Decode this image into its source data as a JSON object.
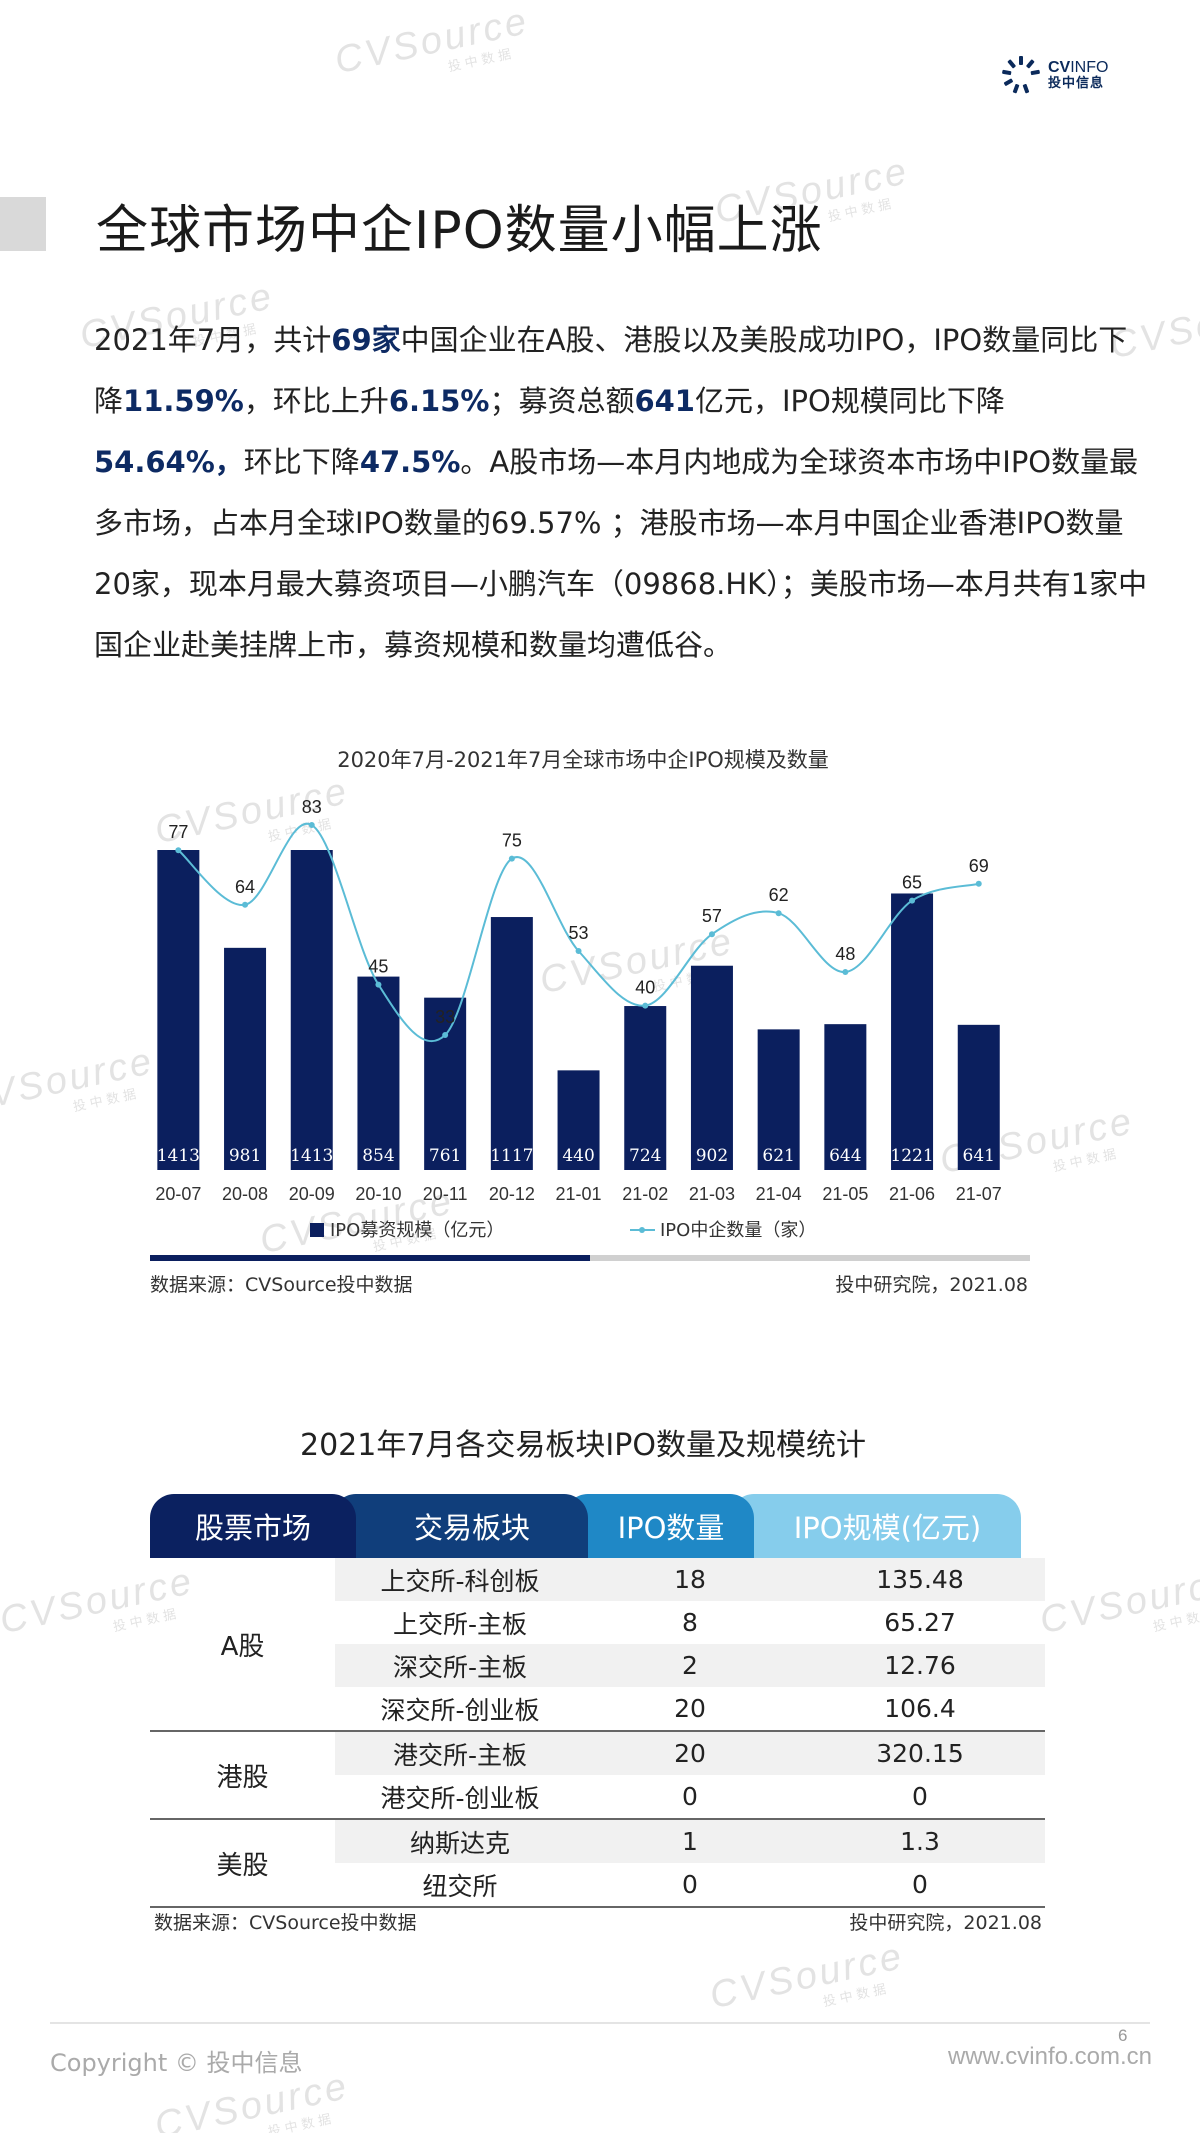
{
  "watermark": {
    "text": "CVSource",
    "sub": "投中数据"
  },
  "logo": {
    "text_en_bold": "CV",
    "text_en": "INFO",
    "text_cn": "投中信息"
  },
  "title": "全球市场中企IPO数量小幅上涨",
  "intro": {
    "p1": "2021年7月，共计",
    "b1": "69家",
    "p2": "中国企业在A股、港股以及美股成功IPO，IPO数量同比下降",
    "b2": "11.59%",
    "p3": "，环比上升",
    "b3": "6.15%",
    "p4": "；募资总额",
    "b4": "641",
    "p5": "亿元，IPO规模同比下降",
    "b5": "54.64%，",
    "p6": "环比下降",
    "b6": "47.5%",
    "p7": "。A股市场—本月内地成为全球资本市场中IPO数量最多市场，占本月全球IPO数量的69.57% ；港股市场—本月中国企业香港IPO数量20家，现本月最大募资项目—小鹏汽车（09868.HK）；美股市场—本月共有1家中国企业赴美挂牌上市，募资规模和数量均遭低谷。"
  },
  "chart_title": "2020年7月-2021年7月全球市场中企IPO规模及数量",
  "chart_data": {
    "type": "bar",
    "categories": [
      "20-07",
      "20-08",
      "20-09",
      "20-10",
      "20-11",
      "20-12",
      "21-01",
      "21-02",
      "21-03",
      "21-04",
      "21-05",
      "21-06",
      "21-07"
    ],
    "series": [
      {
        "name": "IPO募资规模（亿元）",
        "type": "bar",
        "values": [
          1413,
          981,
          1413,
          854,
          761,
          1117,
          440,
          724,
          902,
          621,
          644,
          1221,
          641
        ]
      },
      {
        "name": "IPO中企数量（家）",
        "type": "line",
        "values": [
          77,
          64,
          83,
          45,
          33,
          75,
          53,
          40,
          57,
          62,
          48,
          65,
          69
        ]
      }
    ],
    "colors": {
      "bar": "#0b1f5e",
      "line": "#5bbcd6",
      "bar_label": "#ffffff"
    },
    "legend_position": "bottom",
    "grid": false
  },
  "chart_source": "数据来源：CVSource投中数据",
  "chart_credit": "投中研究院，2021.08",
  "table_title": "2021年7月各交易板块IPO数量及规模统计",
  "table": {
    "headers": [
      "股票市场",
      "交易板块",
      "IPO数量",
      "IPO规模(亿元)"
    ],
    "groups": [
      {
        "market": "A股",
        "rows": [
          {
            "segment": "上交所-科创板",
            "count": "18",
            "amount": "135.48"
          },
          {
            "segment": "上交所-主板",
            "count": "8",
            "amount": "65.27"
          },
          {
            "segment": "深交所-主板",
            "count": "2",
            "amount": "12.76"
          },
          {
            "segment": "深交所-创业板",
            "count": "20",
            "amount": "106.4"
          }
        ]
      },
      {
        "market": "港股",
        "rows": [
          {
            "segment": "港交所-主板",
            "count": "20",
            "amount": "320.15"
          },
          {
            "segment": "港交所-创业板",
            "count": "0",
            "amount": "0"
          }
        ]
      },
      {
        "market": "美股",
        "rows": [
          {
            "segment": "纳斯达克",
            "count": "1",
            "amount": "1.3"
          },
          {
            "segment": "纽交所",
            "count": "0",
            "amount": "0"
          }
        ]
      }
    ]
  },
  "table_source": "数据来源：CVSource投中数据",
  "table_credit": "投中研究院，2021.08",
  "footer": {
    "page": "6",
    "copyright": "Copyright © 投中信息",
    "site": "www.cvinfo.com.cn"
  }
}
